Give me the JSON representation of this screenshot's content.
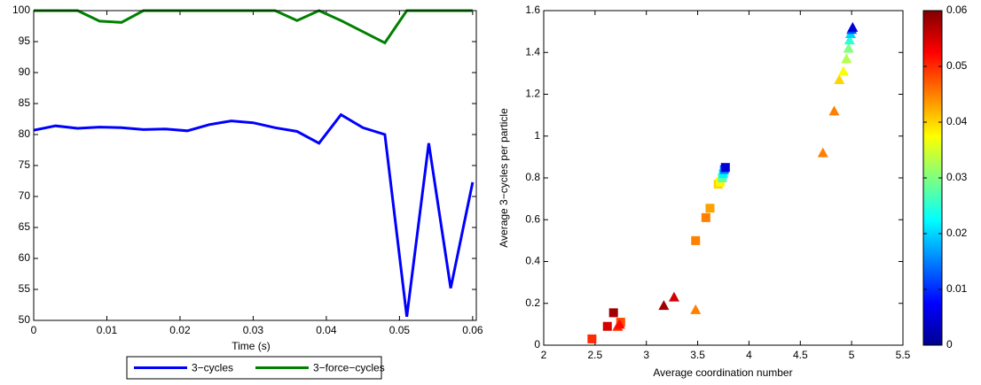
{
  "chart_data": [
    {
      "type": "line",
      "x": [
        0,
        0.003,
        0.006,
        0.009,
        0.012,
        0.015,
        0.018,
        0.021,
        0.024,
        0.027,
        0.03,
        0.033,
        0.036,
        0.039,
        0.042,
        0.045,
        0.048,
        0.051,
        0.054,
        0.057,
        0.06
      ],
      "series": [
        {
          "name": "3−cycles",
          "color": "#0000ff",
          "values": [
            80.7,
            81.4,
            81,
            81.2,
            81.1,
            80.8,
            80.9,
            80.6,
            81.6,
            82.2,
            81.9,
            81.1,
            80.5,
            78.6,
            83.2,
            81.1,
            80,
            50.6,
            78.6,
            55.2,
            72.3
          ]
        },
        {
          "name": "3−force−cycles",
          "color": "#008000",
          "values": [
            100,
            100,
            100,
            98.3,
            98.1,
            100,
            100,
            100,
            100,
            100,
            100,
            100,
            98.4,
            100,
            98.4,
            96.6,
            94.8,
            100,
            100,
            100,
            100
          ]
        }
      ],
      "xlabel": "Time (s)",
      "xlim": [
        0,
        0.0605
      ],
      "xticks": [
        0,
        0.01,
        0.02,
        0.03,
        0.04,
        0.05,
        0.06
      ],
      "ylim": [
        50,
        100
      ],
      "yticks": [
        50,
        55,
        60,
        65,
        70,
        75,
        80,
        85,
        90,
        95,
        100
      ],
      "legend": "bottom"
    },
    {
      "type": "scatter",
      "xlabel": "Average coordination number",
      "ylabel": "Average 3−cycles per particle",
      "xlim": [
        2,
        5.5
      ],
      "xticks": [
        2,
        2.5,
        3,
        3.5,
        4,
        4.5,
        5,
        5.5
      ],
      "ylim": [
        0,
        1.6
      ],
      "yticks": [
        0,
        0.2,
        0.4,
        0.6,
        0.8,
        1,
        1.2,
        1.4,
        1.6
      ],
      "colormap": "jet",
      "clim": [
        0,
        0.06
      ],
      "cticks": [
        0,
        0.01,
        0.02,
        0.03,
        0.04,
        0.05,
        0.06
      ],
      "series": [
        {
          "marker": "square",
          "x": [
            2.47,
            2.62,
            2.68,
            2.75,
            3.48,
            3.58,
            3.62,
            3.7,
            3.72,
            3.74,
            3.75,
            3.76,
            3.77
          ],
          "values": [
            0.03,
            0.09,
            0.155,
            0.11,
            0.5,
            0.61,
            0.655,
            0.77,
            0.78,
            0.8,
            0.82,
            0.84,
            0.85
          ],
          "c": [
            0.05,
            0.055,
            0.058,
            0.048,
            0.045,
            0.045,
            0.043,
            0.04,
            0.038,
            0.028,
            0.022,
            0.015,
            0.005
          ]
        },
        {
          "marker": "triangle",
          "x": [
            2.72,
            2.74,
            3.17,
            3.27,
            3.48,
            4.72,
            4.83,
            4.88,
            4.92,
            4.95,
            4.97,
            4.98,
            4.99,
            5.0,
            5.01
          ],
          "values": [
            0.09,
            0.1,
            0.19,
            0.23,
            0.17,
            0.92,
            1.12,
            1.27,
            1.31,
            1.37,
            1.42,
            1.46,
            1.49,
            1.51,
            1.52
          ],
          "c": [
            0.05,
            0.052,
            0.058,
            0.055,
            0.045,
            0.045,
            0.045,
            0.04,
            0.037,
            0.033,
            0.03,
            0.025,
            0.02,
            0.012,
            0.005
          ]
        }
      ]
    }
  ]
}
